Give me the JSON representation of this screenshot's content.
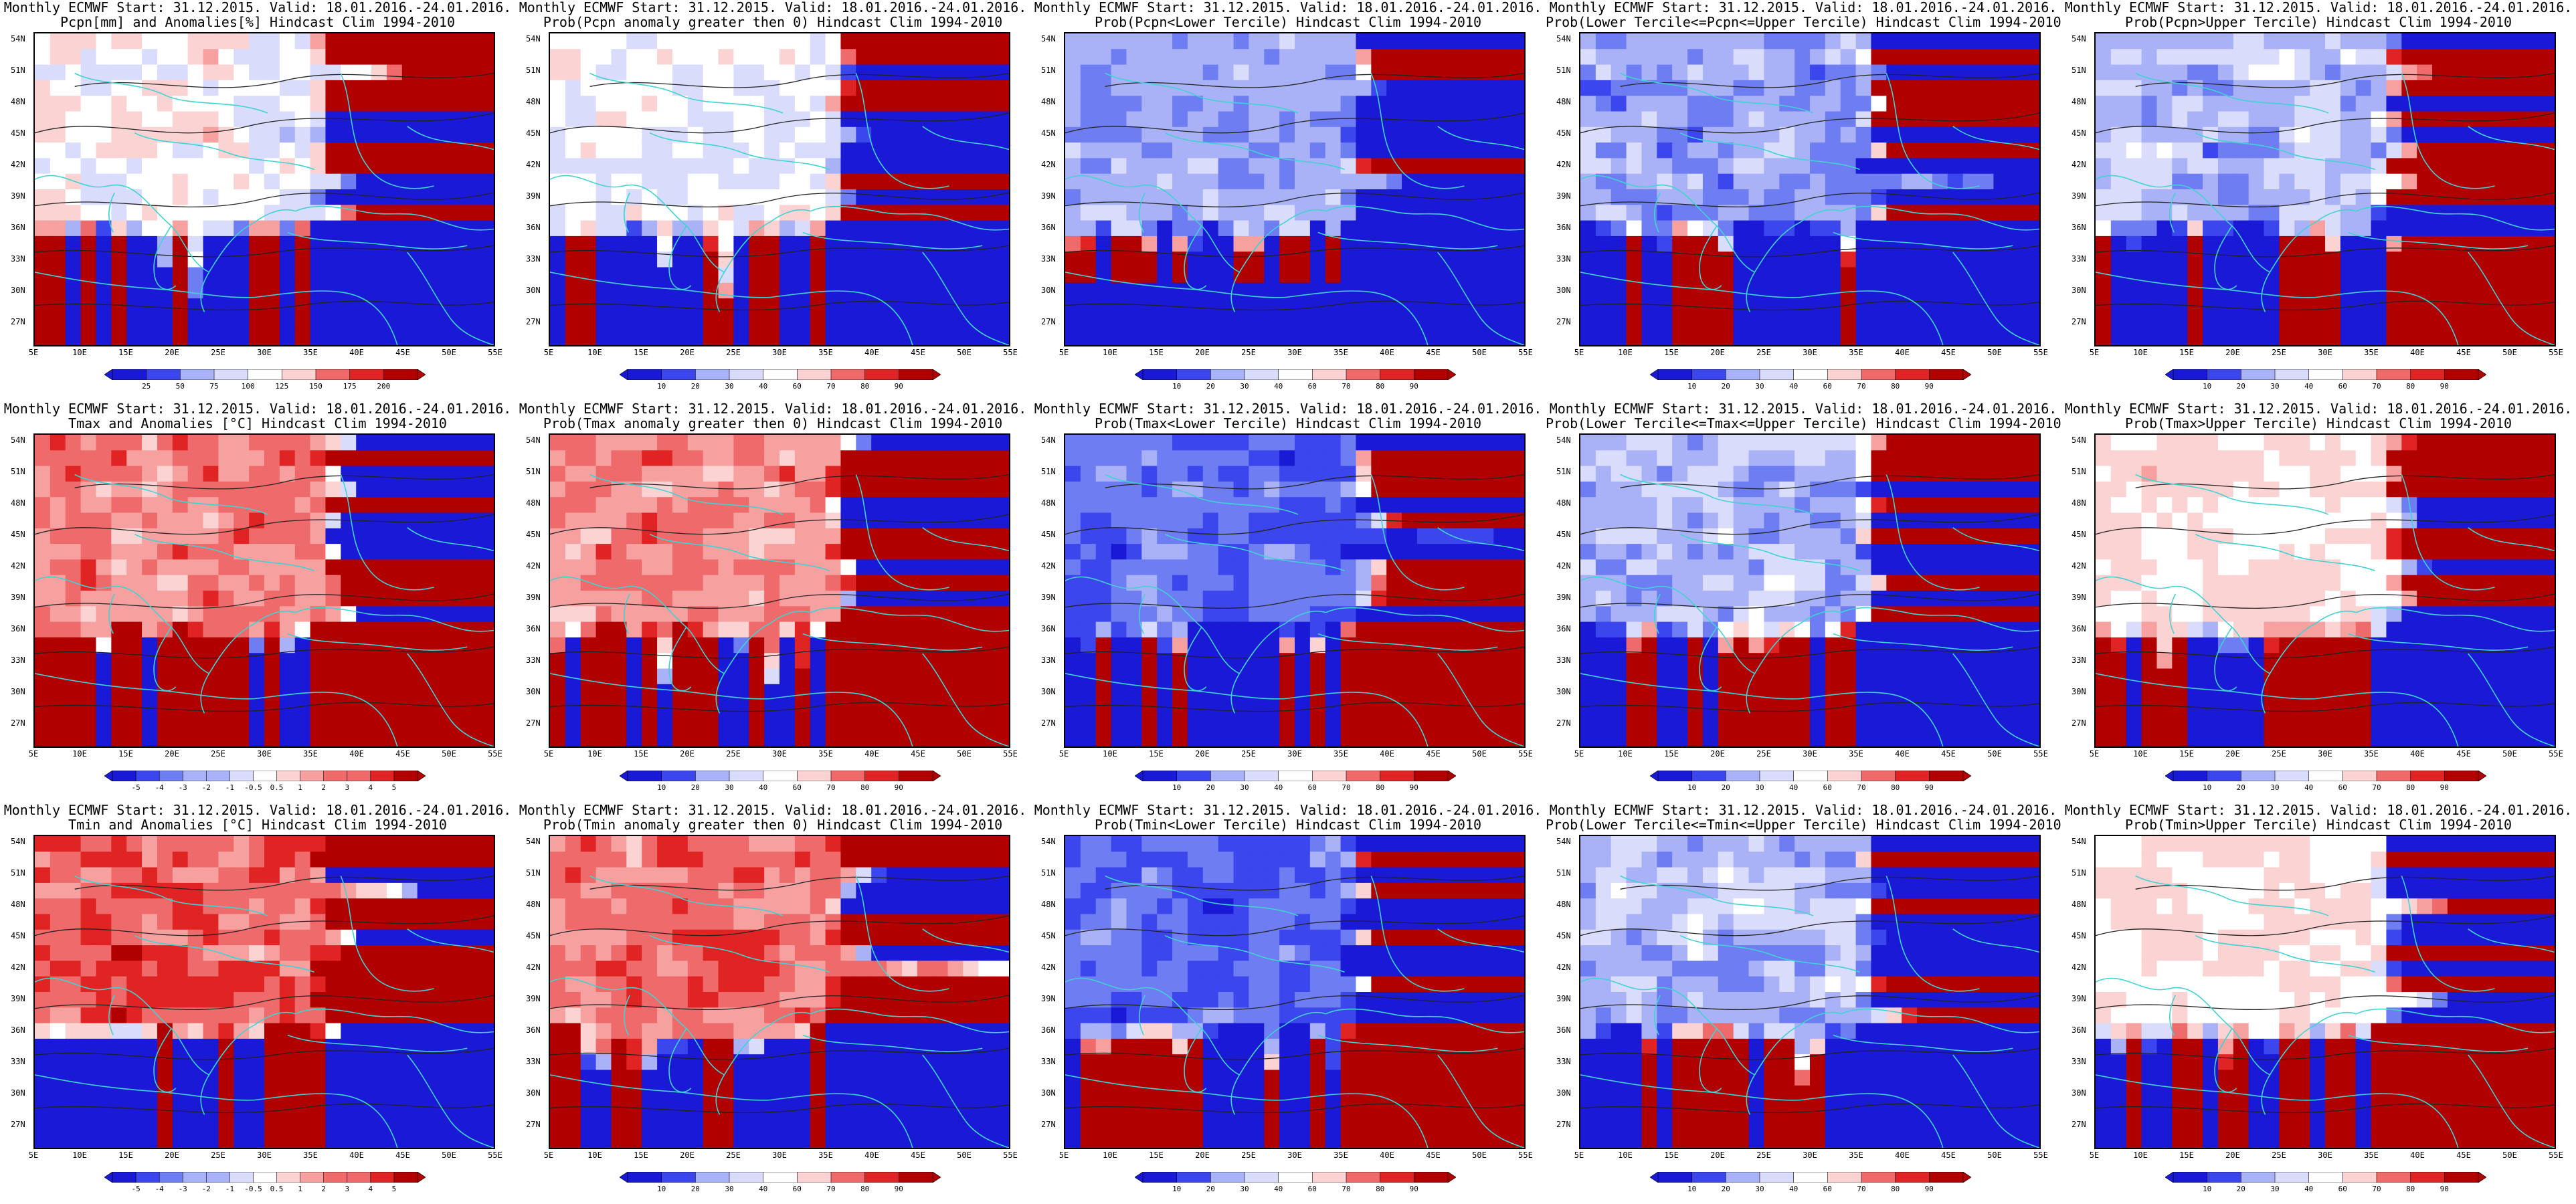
{
  "lat_labels": [
    "54N",
    "51N",
    "48N",
    "45N",
    "42N",
    "39N",
    "36N",
    "33N",
    "30N",
    "27N"
  ],
  "lon_labels": [
    "5E",
    "10E",
    "15E",
    "20E",
    "25E",
    "30E",
    "35E",
    "40E",
    "45E",
    "50E",
    "55E"
  ],
  "colors": {
    "prob_scale": [
      "#1a1ad6",
      "#3b46ec",
      "#6e7ef2",
      "#a9b2f6",
      "#d9dcfa",
      "#ffffff",
      "#fbd3d3",
      "#f6a0a0",
      "#ef6a6a",
      "#e02424",
      "#b00000"
    ],
    "coast": "#3fd3d3",
    "contour": "#222222"
  },
  "panels": [
    {
      "id": "pcpn-anom",
      "row": 0,
      "col": 0,
      "title1": "Monthly ECMWF Start: 31.12.2015. Valid: 18.01.2016.-24.01.2016.",
      "title2": "Pcpn[mm] and Anomalies[%] Hindcast Clim 1994-2010",
      "style": "precip",
      "colorbar": [
        "25",
        "50",
        "75",
        "100",
        "125",
        "150",
        "175",
        "200"
      ]
    },
    {
      "id": "pcpn-prob-gt0",
      "row": 0,
      "col": 1,
      "title1": "Monthly ECMWF Start: 31.12.2015. Valid: 18.01.2016.-24.01.2016.",
      "title2": "Prob(Pcpn anomaly greater then 0) Hindcast Clim 1994-2010",
      "style": "blue_south",
      "colorbar": [
        "10",
        "20",
        "30",
        "40",
        "60",
        "70",
        "80",
        "90"
      ]
    },
    {
      "id": "pcpn-prob-lower",
      "row": 0,
      "col": 2,
      "title1": "Monthly ECMWF Start: 31.12.2015. Valid: 18.01.2016.-24.01.2016.",
      "title2": "Prob(Pcpn<Lower Tercile) Hindcast Clim 1994-2010",
      "style": "blue_darksouth",
      "colorbar": [
        "10",
        "20",
        "30",
        "40",
        "60",
        "70",
        "80",
        "90"
      ]
    },
    {
      "id": "pcpn-prob-middle",
      "row": 0,
      "col": 3,
      "title1": "Monthly ECMWF Start: 31.12.2015. Valid: 18.01.2016.-24.01.2016.",
      "title2": "Prob(Lower Tercile<=Pcpn<=Upper Tercile) Hindcast Clim 1994-2010",
      "style": "blue_redsw",
      "colorbar": [
        "10",
        "20",
        "30",
        "40",
        "60",
        "70",
        "80",
        "90"
      ]
    },
    {
      "id": "pcpn-prob-upper",
      "row": 0,
      "col": 4,
      "title1": "Monthly ECMWF Start: 31.12.2015. Valid: 18.01.2016.-24.01.2016.",
      "title2": "Prob(Pcpn>Upper Tercile) Hindcast Clim 1994-2010",
      "style": "blue_mid",
      "colorbar": [
        "10",
        "20",
        "30",
        "40",
        "60",
        "70",
        "80",
        "90"
      ]
    },
    {
      "id": "tmax-anom",
      "row": 1,
      "col": 0,
      "title1": "Monthly ECMWF Start: 31.12.2015. Valid: 18.01.2016.-24.01.2016.",
      "title2": "Tmax and Anomalies [°C] Hindcast Clim 1994-2010",
      "style": "red_light",
      "colorbar": [
        "-5",
        "-4",
        "-3",
        "-2",
        "-1",
        "-0.5",
        "0.5",
        "1",
        "2",
        "3",
        "4",
        "5"
      ]
    },
    {
      "id": "tmax-prob-gt0",
      "row": 1,
      "col": 1,
      "title1": "Monthly ECMWF Start: 31.12.2015. Valid: 18.01.2016.-24.01.2016.",
      "title2": "Prob(Tmax anomaly greater then 0) Hindcast Clim 1994-2010",
      "style": "red_light",
      "colorbar": [
        "10",
        "20",
        "30",
        "40",
        "60",
        "70",
        "80",
        "90"
      ]
    },
    {
      "id": "tmax-prob-lower",
      "row": 1,
      "col": 2,
      "title1": "Monthly ECMWF Start: 31.12.2015. Valid: 18.01.2016.-24.01.2016.",
      "title2": "Prob(Tmax<Lower Tercile) Hindcast Clim 1994-2010",
      "style": "blue_strong",
      "colorbar": [
        "10",
        "20",
        "30",
        "40",
        "60",
        "70",
        "80",
        "90"
      ]
    },
    {
      "id": "tmax-prob-middle",
      "row": 1,
      "col": 3,
      "title1": "Monthly ECMWF Start: 31.12.2015. Valid: 18.01.2016.-24.01.2016.",
      "title2": "Prob(Lower Tercile<=Tmax<=Upper Tercile) Hindcast Clim 1994-2010",
      "style": "blue_mid",
      "colorbar": [
        "10",
        "20",
        "30",
        "40",
        "60",
        "70",
        "80",
        "90"
      ]
    },
    {
      "id": "tmax-prob-upper",
      "row": 1,
      "col": 4,
      "title1": "Monthly ECMWF Start: 31.12.2015. Valid: 18.01.2016.-24.01.2016.",
      "title2": "Prob(Tmax>Upper Tercile) Hindcast Clim 1994-2010",
      "style": "white_redeast",
      "colorbar": [
        "10",
        "20",
        "30",
        "40",
        "60",
        "70",
        "80",
        "90"
      ]
    },
    {
      "id": "tmin-anom",
      "row": 2,
      "col": 0,
      "title1": "Monthly ECMWF Start: 31.12.2015. Valid: 18.01.2016.-24.01.2016.",
      "title2": "Tmin and Anomalies [°C] Hindcast Clim 1994-2010",
      "style": "red_strong",
      "colorbar": [
        "-5",
        "-4",
        "-3",
        "-2",
        "-1",
        "-0.5",
        "0.5",
        "1",
        "2",
        "3",
        "4",
        "5"
      ]
    },
    {
      "id": "tmin-prob-gt0",
      "row": 2,
      "col": 1,
      "title1": "Monthly ECMWF Start: 31.12.2015. Valid: 18.01.2016.-24.01.2016.",
      "title2": "Prob(Tmin anomaly greater then 0) Hindcast Clim 1994-2010",
      "style": "red_strong",
      "colorbar": [
        "10",
        "20",
        "30",
        "40",
        "60",
        "70",
        "80",
        "90"
      ]
    },
    {
      "id": "tmin-prob-lower",
      "row": 2,
      "col": 2,
      "title1": "Monthly ECMWF Start: 31.12.2015. Valid: 18.01.2016.-24.01.2016.",
      "title2": "Prob(Tmin<Lower Tercile) Hindcast Clim 1994-2010",
      "style": "blue_strong",
      "colorbar": [
        "10",
        "20",
        "30",
        "40",
        "60",
        "70",
        "80",
        "90"
      ]
    },
    {
      "id": "tmin-prob-middle",
      "row": 2,
      "col": 3,
      "title1": "Monthly ECMWF Start: 31.12.2015. Valid: 18.01.2016.-24.01.2016.",
      "title2": "Prob(Lower Tercile<=Tmin<=Upper Tercile) Hindcast Clim 1994-2010",
      "style": "blue_mid",
      "colorbar": [
        "10",
        "20",
        "30",
        "40",
        "60",
        "70",
        "80",
        "90"
      ]
    },
    {
      "id": "tmin-prob-upper",
      "row": 2,
      "col": 4,
      "title1": "Monthly ECMWF Start: 31.12.2015. Valid: 18.01.2016.-24.01.2016.",
      "title2": "Prob(Tmin>Upper Tercile) Hindcast Clim 1994-2010",
      "style": "white_redeast",
      "colorbar": [
        "10",
        "20",
        "30",
        "40",
        "60",
        "70",
        "80",
        "90"
      ]
    }
  ]
}
